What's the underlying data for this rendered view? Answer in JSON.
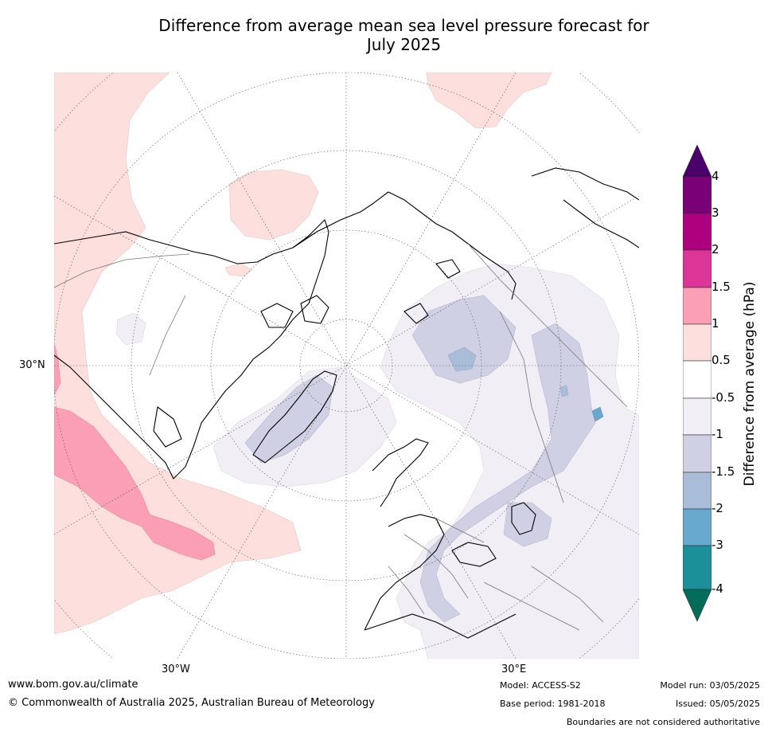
{
  "title_line1": "Difference from average mean sea level pressure forecast for",
  "title_line2": "July 2025",
  "map": {
    "lat_label": "30°N",
    "lon_label_west": "30°W",
    "lon_label_east": "30°E"
  },
  "colorbar": {
    "title": "Difference from average (hPa)",
    "ticks": [
      "4",
      "3",
      "2",
      "1.5",
      "1",
      "0.5",
      "-0.5",
      "-1",
      "-1.5",
      "-2",
      "-3",
      "-4"
    ],
    "colors": {
      "above_4": "#4a006a",
      "3_to_4": "#7a0077",
      "2_to_3": "#ae007e",
      "1.5_to_2": "#dd3497",
      "1_to_1.5": "#fa9fb5",
      "0.5_to_1": "#fde0dd",
      "neutral": "#ffffff",
      "-1_to_-0.5": "#f2eef5",
      "-1.5_to_-1": "#cfd0e3",
      "-2_to_-1.5": "#a9bcd8",
      "-3_to_-2": "#67a9cf",
      "-4_to_-3": "#1c9099",
      "below_-4": "#016c59"
    }
  },
  "footer": {
    "website": "www.bom.gov.au/climate",
    "copyright": "© Commonwealth of Australia 2025, Australian Bureau of Meteorology",
    "model": "Model: ACCESS-S2",
    "base_period": "Base period: 1981-2018",
    "model_run": "Model run: 03/05/2025",
    "issued": "Issued: 05/05/2025",
    "disclaimer": "Boundaries are not considered authoritative"
  }
}
